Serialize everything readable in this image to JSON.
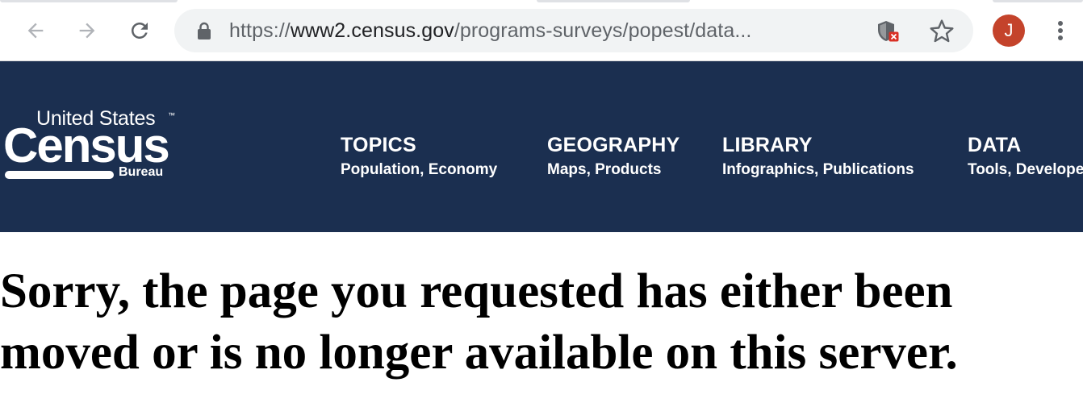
{
  "browser": {
    "url_scheme": "https://",
    "url_host": "www2.census.gov",
    "url_path": "/programs-surveys/popest/data...",
    "profile_initial": "J",
    "icons": {
      "back": "arrow-left-icon",
      "forward": "arrow-right-icon",
      "reload": "reload-icon",
      "lock": "lock-icon",
      "tracking": "shield-blocked-icon",
      "bookmark": "star-icon",
      "menu": "kebab-menu-icon"
    },
    "colors": {
      "avatar": "#c4432b",
      "omnibox": "#f1f3f4"
    }
  },
  "site": {
    "logo": {
      "top_line": "United States",
      "trademark": "™",
      "main": "Census",
      "sub": "Bureau"
    },
    "nav": [
      {
        "title": "TOPICS",
        "subtitle": "Population, Economy"
      },
      {
        "title": "GEOGRAPHY",
        "subtitle": "Maps, Products"
      },
      {
        "title": "LIBRARY",
        "subtitle": "Infographics, Publications"
      },
      {
        "title": "DATA",
        "subtitle": "Tools, Developers"
      }
    ],
    "colors": {
      "header_bg": "#1b2f50",
      "text": "#ffffff"
    }
  },
  "error": {
    "line1": "Sorry, the page you requested has either been",
    "line2": "moved or is no longer available on this server."
  }
}
